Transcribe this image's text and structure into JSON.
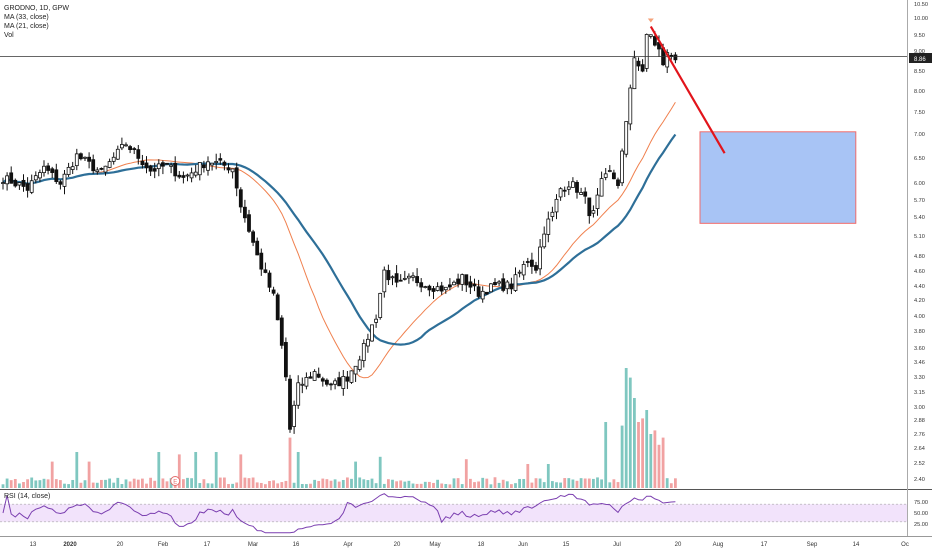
{
  "legend": {
    "symbol": "GRODNO, 1D, GPW",
    "ma33": "MA (33, close)",
    "ma21": "MA (21, close)",
    "vol": "Vol"
  },
  "rsi_label": "RSI (14, close)",
  "last_price_label": "8.86",
  "event_badge": "E",
  "colors": {
    "up": "#ffffff",
    "down": "#111111",
    "candle_border": "#111111",
    "ma33": "#2e6f98",
    "ma21": "#f0804e",
    "vol_up": "#7fc7c0",
    "vol_down": "#f1a2a2",
    "rsi_line": "#7b3fb0",
    "rsi_band": "#f2e3fb",
    "arrow": "#e2141b",
    "target_fill": "#a8c4f5",
    "target_border": "#ef6b6b"
  },
  "chart_data": {
    "type": "candlestick",
    "y_ticks": [
      "10.50",
      "10.00",
      "9.50",
      "9.00",
      "8.86",
      "8.50",
      "8.00",
      "7.50",
      "7.00",
      "6.50",
      "6.00",
      "5.70",
      "5.40",
      "5.10",
      "4.80",
      "4.60",
      "4.40",
      "4.20",
      "4.00",
      "3.80",
      "3.60",
      "3.46",
      "3.30",
      "3.15",
      "3.00",
      "2.88",
      "2.76",
      "2.64",
      "2.52",
      "2.40"
    ],
    "x_ticks": [
      "13",
      "2020",
      "20",
      "Feb",
      "17",
      "Mar",
      "16",
      "Apr",
      "20",
      "May",
      "18",
      "Jun",
      "15",
      "Jul",
      "20",
      "Aug",
      "17",
      "Sep",
      "14",
      "Oc"
    ],
    "rsi_ticks": [
      "75.00",
      "50.00",
      "25.00"
    ],
    "last_price": 8.86,
    "anchors": [
      [
        0,
        6.1
      ],
      [
        6,
        5.9
      ],
      [
        10,
        6.3
      ],
      [
        14,
        6.0
      ],
      [
        18,
        6.55
      ],
      [
        24,
        6.2
      ],
      [
        30,
        6.8
      ],
      [
        36,
        6.25
      ],
      [
        40,
        6.35
      ],
      [
        44,
        6.1
      ],
      [
        50,
        6.45
      ],
      [
        56,
        6.3
      ],
      [
        58,
        5.6
      ],
      [
        62,
        4.8
      ],
      [
        66,
        4.25
      ],
      [
        69,
        3.3
      ],
      [
        70,
        2.8
      ],
      [
        72,
        3.2
      ],
      [
        76,
        3.35
      ],
      [
        80,
        3.2
      ],
      [
        84,
        3.3
      ],
      [
        88,
        3.6
      ],
      [
        91,
        4.0
      ],
      [
        93,
        4.6
      ],
      [
        96,
        4.4
      ],
      [
        100,
        4.5
      ],
      [
        104,
        4.4
      ],
      [
        108,
        4.35
      ],
      [
        112,
        4.5
      ],
      [
        116,
        4.3
      ],
      [
        120,
        4.4
      ],
      [
        124,
        4.4
      ],
      [
        128,
        4.75
      ],
      [
        130,
        4.65
      ],
      [
        132,
        5.2
      ],
      [
        134,
        5.45
      ],
      [
        136,
        5.9
      ],
      [
        138,
        6.0
      ],
      [
        140,
        5.9
      ],
      [
        142,
        5.7
      ],
      [
        143,
        5.5
      ],
      [
        144,
        5.45
      ],
      [
        146,
        6.0
      ],
      [
        148,
        6.2
      ],
      [
        150,
        6.0
      ],
      [
        151,
        6.6
      ],
      [
        152,
        7.2
      ],
      [
        153,
        8.1
      ],
      [
        154,
        8.9
      ],
      [
        156,
        8.4
      ],
      [
        157,
        9.5
      ],
      [
        158,
        9.55
      ],
      [
        159,
        9.15
      ],
      [
        160,
        9.0
      ],
      [
        161,
        8.7
      ],
      [
        162,
        8.9
      ],
      [
        163,
        8.9
      ],
      [
        164,
        8.86
      ]
    ],
    "volume_spikes": [
      [
        12,
        0.22
      ],
      [
        18,
        0.3
      ],
      [
        21,
        0.22
      ],
      [
        38,
        0.3
      ],
      [
        43,
        0.28
      ],
      [
        47,
        0.3
      ],
      [
        52,
        0.3
      ],
      [
        58,
        0.28
      ],
      [
        70,
        0.42
      ],
      [
        72,
        0.3
      ],
      [
        86,
        0.22
      ],
      [
        92,
        0.26
      ],
      [
        113,
        0.24
      ],
      [
        128,
        0.2
      ],
      [
        133,
        0.2
      ],
      [
        147,
        0.55
      ],
      [
        151,
        0.52
      ],
      [
        152,
        1.0
      ],
      [
        153,
        0.92
      ],
      [
        154,
        0.75
      ],
      [
        155,
        0.55
      ],
      [
        156,
        0.58
      ],
      [
        157,
        0.65
      ],
      [
        158,
        0.45
      ],
      [
        159,
        0.48
      ],
      [
        160,
        0.36
      ],
      [
        161,
        0.42
      ]
    ],
    "arrow": {
      "from_bar": 158,
      "from_price": 9.75,
      "to_bar": 176,
      "to_price": 6.6
    },
    "target_box": {
      "from_bar": 170,
      "to_bar": 208,
      "top_price": 7.05,
      "bottom_price": 5.3
    },
    "event_bar": 42,
    "n_bars": 165,
    "ma33_period": 33,
    "ma21_period": 21
  }
}
